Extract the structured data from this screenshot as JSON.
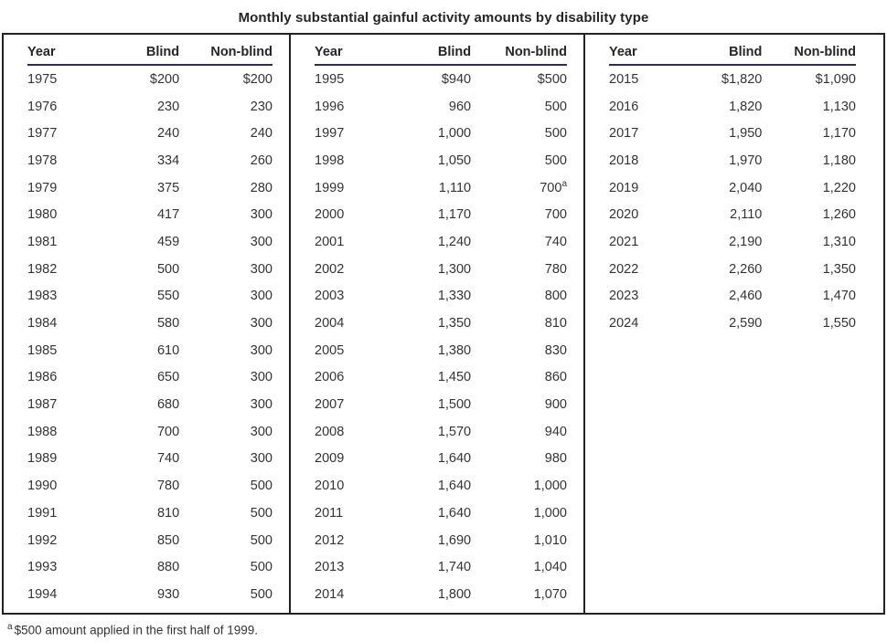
{
  "title": "Monthly substantial gainful activity amounts by disability type",
  "table": {
    "columns": [
      "Year",
      "Blind",
      "Non-blind"
    ],
    "groups": [
      {
        "rows": [
          [
            "1975",
            "$200",
            "$200"
          ],
          [
            "1976",
            "230",
            "230"
          ],
          [
            "1977",
            "240",
            "240"
          ],
          [
            "1978",
            "334",
            "260"
          ],
          [
            "1979",
            "375",
            "280"
          ],
          [
            "1980",
            "417",
            "300"
          ],
          [
            "1981",
            "459",
            "300"
          ],
          [
            "1982",
            "500",
            "300"
          ],
          [
            "1983",
            "550",
            "300"
          ],
          [
            "1984",
            "580",
            "300"
          ],
          [
            "1985",
            "610",
            "300"
          ],
          [
            "1986",
            "650",
            "300"
          ],
          [
            "1987",
            "680",
            "300"
          ],
          [
            "1988",
            "700",
            "300"
          ],
          [
            "1989",
            "740",
            "300"
          ],
          [
            "1990",
            "780",
            "500"
          ],
          [
            "1991",
            "810",
            "500"
          ],
          [
            "1992",
            "850",
            "500"
          ],
          [
            "1993",
            "880",
            "500"
          ],
          [
            "1994",
            "930",
            "500"
          ]
        ]
      },
      {
        "rows": [
          [
            "1995",
            "$940",
            "$500"
          ],
          [
            "1996",
            "960",
            "500"
          ],
          [
            "1997",
            "1,000",
            "500"
          ],
          [
            "1998",
            "1,050",
            "500"
          ],
          [
            "1999",
            "1,110",
            "700"
          ],
          [
            "2000",
            "1,170",
            "700"
          ],
          [
            "2001",
            "1,240",
            "740"
          ],
          [
            "2002",
            "1,300",
            "780"
          ],
          [
            "2003",
            "1,330",
            "800"
          ],
          [
            "2004",
            "1,350",
            "810"
          ],
          [
            "2005",
            "1,380",
            "830"
          ],
          [
            "2006",
            "1,450",
            "860"
          ],
          [
            "2007",
            "1,500",
            "900"
          ],
          [
            "2008",
            "1,570",
            "940"
          ],
          [
            "2009",
            "1,640",
            "980"
          ],
          [
            "2010",
            "1,640",
            "1,000"
          ],
          [
            "2011",
            "1,640",
            "1,000"
          ],
          [
            "2012",
            "1,690",
            "1,010"
          ],
          [
            "2013",
            "1,740",
            "1,040"
          ],
          [
            "2014",
            "1,800",
            "1,070"
          ]
        ],
        "footnote_cell": {
          "row": 4,
          "col": 2,
          "marker": "a"
        }
      },
      {
        "rows": [
          [
            "2015",
            "$1,820",
            "$1,090"
          ],
          [
            "2016",
            "1,820",
            "1,130"
          ],
          [
            "2017",
            "1,950",
            "1,170"
          ],
          [
            "2018",
            "1,970",
            "1,180"
          ],
          [
            "2019",
            "2,040",
            "1,220"
          ],
          [
            "2020",
            "2,110",
            "1,260"
          ],
          [
            "2021",
            "2,190",
            "1,310"
          ],
          [
            "2022",
            "2,260",
            "1,350"
          ],
          [
            "2023",
            "2,460",
            "1,470"
          ],
          [
            "2024",
            "2,590",
            "1,550"
          ]
        ]
      }
    ]
  },
  "footnote": {
    "marker": "a",
    "text": "$500 amount applied in the first half of 1999."
  },
  "colors": {
    "header_underline": "#2e2c5c",
    "frame_border": "#222222",
    "text": "#333333",
    "title_text": "#262626"
  },
  "chart_data": {
    "type": "table",
    "title": "Monthly substantial gainful activity amounts by disability type",
    "columns": [
      "Year",
      "Blind",
      "Non-blind"
    ],
    "x": [
      1975,
      1976,
      1977,
      1978,
      1979,
      1980,
      1981,
      1982,
      1983,
      1984,
      1985,
      1986,
      1987,
      1988,
      1989,
      1990,
      1991,
      1992,
      1993,
      1994,
      1995,
      1996,
      1997,
      1998,
      1999,
      2000,
      2001,
      2002,
      2003,
      2004,
      2005,
      2006,
      2007,
      2008,
      2009,
      2010,
      2011,
      2012,
      2013,
      2014,
      2015,
      2016,
      2017,
      2018,
      2019,
      2020,
      2021,
      2022,
      2023,
      2024
    ],
    "series": [
      {
        "name": "Blind",
        "values": [
          200,
          230,
          240,
          334,
          375,
          417,
          459,
          500,
          550,
          580,
          610,
          650,
          680,
          700,
          740,
          780,
          810,
          850,
          880,
          930,
          940,
          960,
          1000,
          1050,
          1110,
          1170,
          1240,
          1300,
          1330,
          1350,
          1380,
          1450,
          1500,
          1570,
          1640,
          1640,
          1640,
          1690,
          1740,
          1800,
          1820,
          1820,
          1950,
          1970,
          2040,
          2110,
          2190,
          2260,
          2460,
          2590
        ]
      },
      {
        "name": "Non-blind",
        "values": [
          200,
          230,
          240,
          260,
          280,
          300,
          300,
          300,
          300,
          300,
          300,
          300,
          300,
          300,
          300,
          500,
          500,
          500,
          500,
          500,
          500,
          500,
          500,
          500,
          700,
          700,
          740,
          780,
          800,
          810,
          830,
          860,
          900,
          940,
          980,
          1000,
          1000,
          1010,
          1040,
          1070,
          1090,
          1130,
          1170,
          1180,
          1220,
          1260,
          1310,
          1350,
          1470,
          1550
        ]
      }
    ],
    "annotations": [
      "a: $500 amount applied in the first half of 1999 (applies to 1999 Non-blind value of 700)"
    ],
    "layout": "three column groups: 1975-1994, 1995-2014, 2015-2024"
  }
}
